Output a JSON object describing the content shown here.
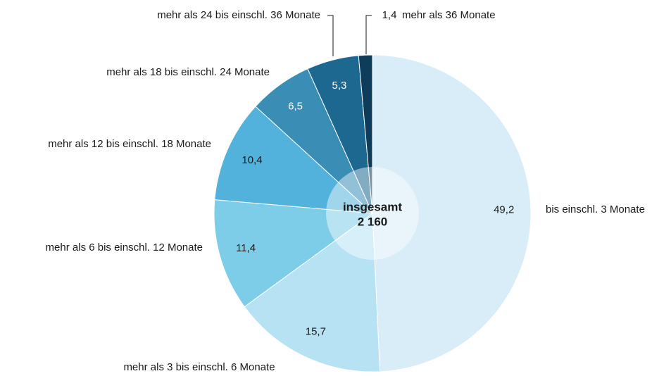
{
  "chart_data": {
    "type": "pie",
    "categories": [
      "bis einschl. 3 Monate",
      "mehr als 3 bis einschl. 6 Monate",
      "mehr als 6 bis einschl. 12 Monate",
      "mehr als 12 bis einschl. 18 Monate",
      "mehr als 18 bis einschl. 24 Monate",
      "mehr als 24 bis einschl. 36 Monate",
      "mehr als 36 Monate"
    ],
    "values": [
      49.2,
      15.7,
      11.4,
      10.4,
      6.5,
      5.3,
      1.4
    ],
    "value_labels": [
      "49,2",
      "15,7",
      "11,4",
      "10,4",
      "6,5",
      "5,3",
      "1,4"
    ],
    "colors": [
      "#d9edf8",
      "#b6e2f3",
      "#7ecde8",
      "#52b2dc",
      "#3a8db5",
      "#1d6890",
      "#0d3d5a"
    ],
    "center_label": [
      "insgesamt",
      "2 160"
    ]
  }
}
